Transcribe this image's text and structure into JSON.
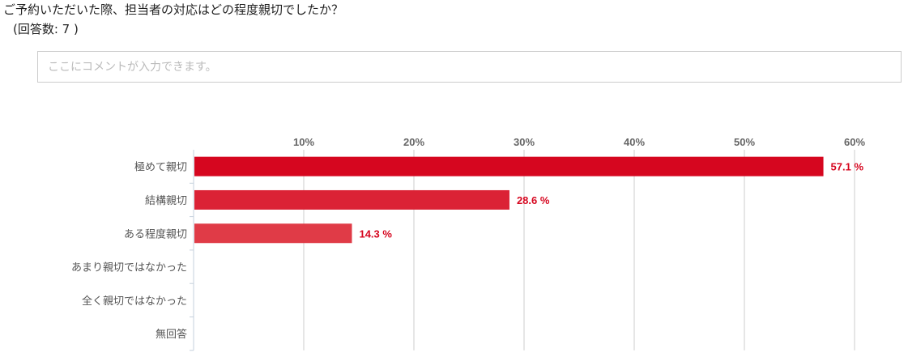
{
  "question": "ご予約いただいた際、担当者の対応はどの程度親切でしたか？",
  "response_count": "(回答数: 7 )",
  "comment": {
    "placeholder": "ここにコメントが入力できます。",
    "value": ""
  },
  "chart_data": {
    "type": "bar",
    "orientation": "horizontal",
    "categories": [
      "極めて親切",
      "結構親切",
      "ある程度親切",
      "あまり親切ではなかった",
      "全く親切ではなかった",
      "無回答"
    ],
    "values": [
      57.1,
      28.6,
      14.3,
      0,
      0,
      0
    ],
    "data_labels": [
      "57.1 %",
      "28.6 %",
      "14.3 %",
      "",
      "",
      ""
    ],
    "xlim": [
      0,
      60
    ],
    "ticks": [
      10,
      20,
      30,
      40,
      50,
      60
    ],
    "tick_labels": [
      "10%",
      "20%",
      "30%",
      "40%",
      "50%",
      "60%"
    ],
    "tick_position": "top",
    "grid": true,
    "colors": [
      "#d6061f",
      "#db2235",
      "#e03b47"
    ],
    "label_color": "#d6061f"
  }
}
